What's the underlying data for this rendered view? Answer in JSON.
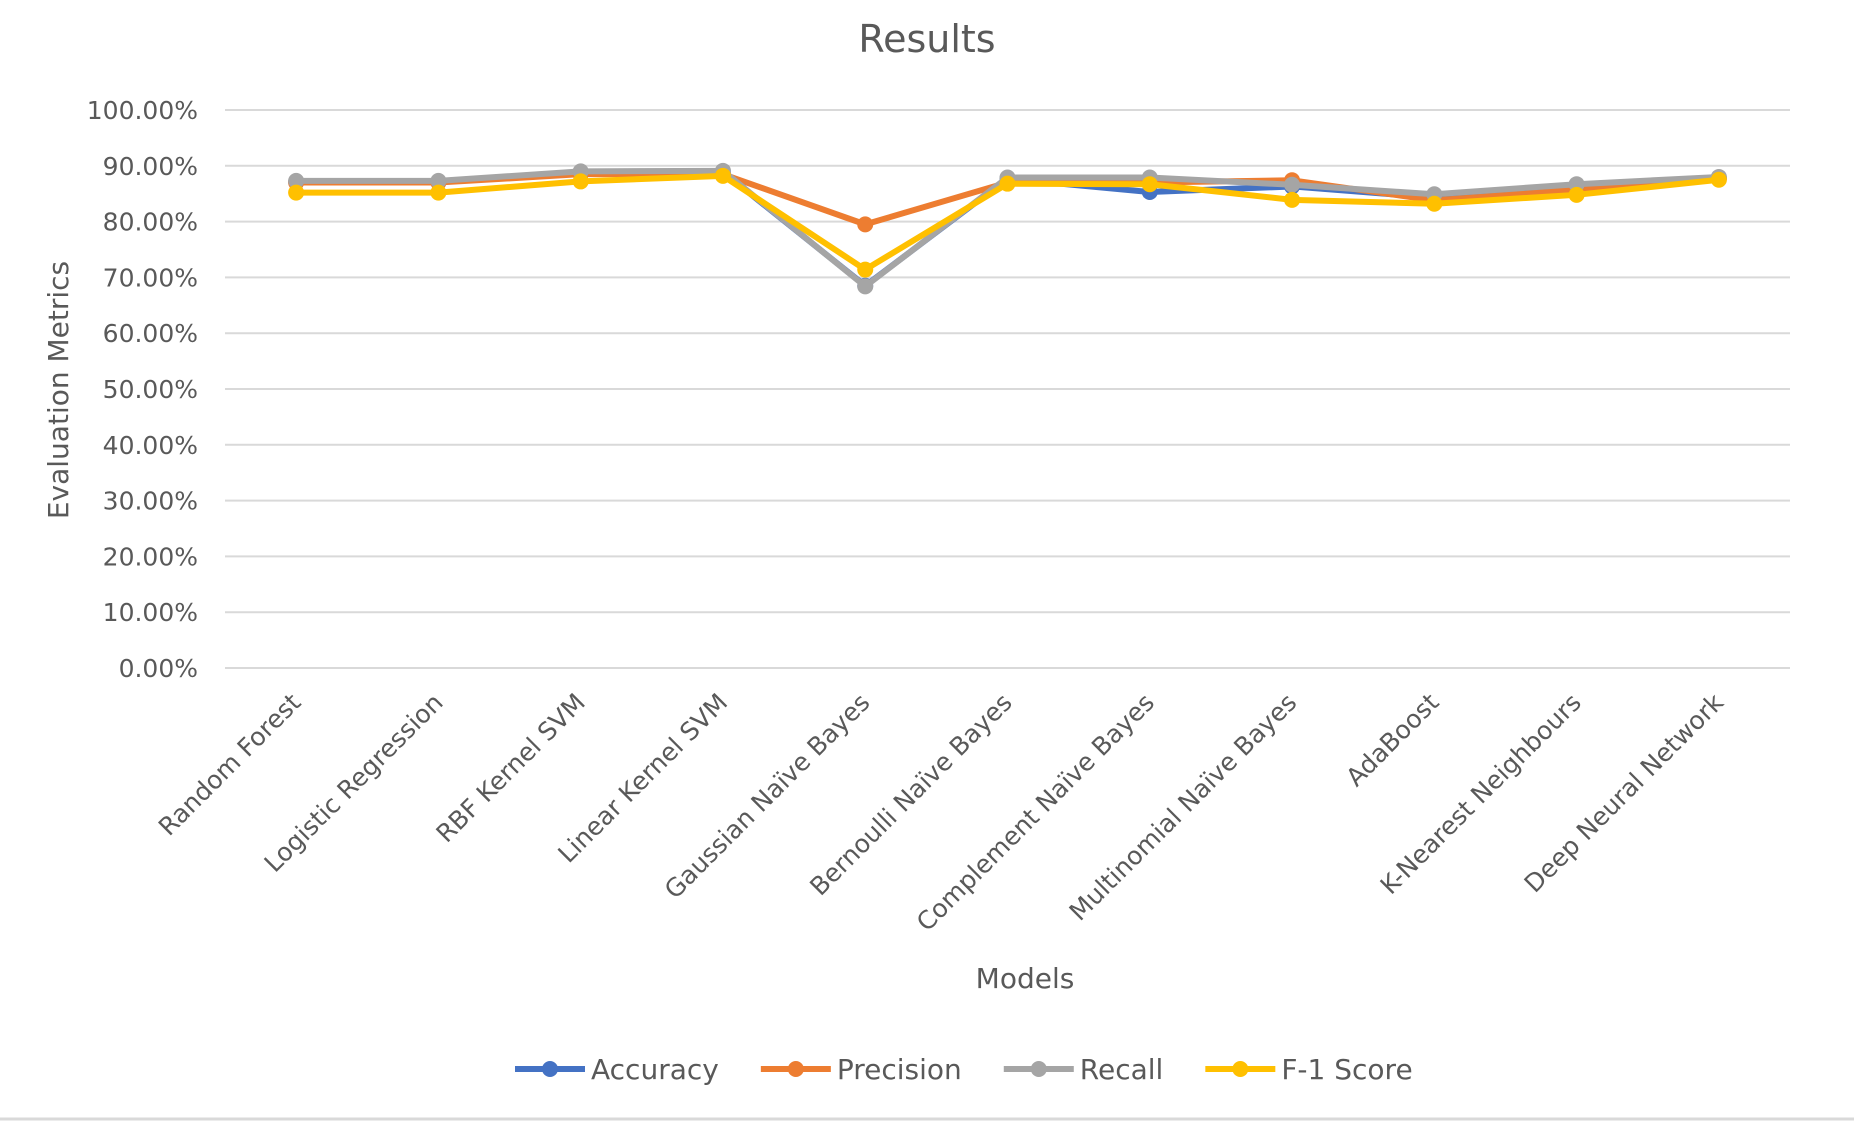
{
  "chart_data": {
    "type": "line",
    "title": "Results",
    "xlabel": "Models",
    "ylabel": "Evaluation Metrics",
    "ylim": [
      0,
      1
    ],
    "yticks": [
      "0.00%",
      "10.00%",
      "20.00%",
      "30.00%",
      "40.00%",
      "50.00%",
      "60.00%",
      "70.00%",
      "80.00%",
      "90.00%",
      "100.00%"
    ],
    "grid": true,
    "legend_position": "bottom",
    "categories": [
      "Random Forest",
      "Logistic Regression",
      "RBF Kernel SVM",
      "Linear Kernel SVM",
      "Gaussian Naïve Bayes",
      "Bernoulli Naïve Bayes",
      "Complement Naïve Bayes",
      "Multinomial Naïve Bayes",
      "AdaBoost",
      "K-Nearest Neighbours",
      "Deep Neural Network"
    ],
    "series": [
      {
        "name": "Accuracy",
        "color": "#4472c4",
        "values": [
          0.871,
          0.871,
          0.886,
          0.889,
          0.685,
          0.877,
          0.853,
          0.863,
          0.843,
          0.865,
          0.878
        ]
      },
      {
        "name": "Precision",
        "color": "#ed7d31",
        "values": [
          0.87,
          0.87,
          0.885,
          0.885,
          0.795,
          0.87,
          0.87,
          0.874,
          0.838,
          0.857,
          0.877
        ]
      },
      {
        "name": "Recall",
        "color": "#a5a5a5",
        "values": [
          0.873,
          0.873,
          0.89,
          0.891,
          0.684,
          0.879,
          0.879,
          0.866,
          0.849,
          0.867,
          0.88
        ]
      },
      {
        "name": "F-1 Score",
        "color": "#ffc000",
        "values": [
          0.852,
          0.852,
          0.872,
          0.882,
          0.714,
          0.868,
          0.867,
          0.839,
          0.832,
          0.848,
          0.875
        ]
      }
    ]
  }
}
